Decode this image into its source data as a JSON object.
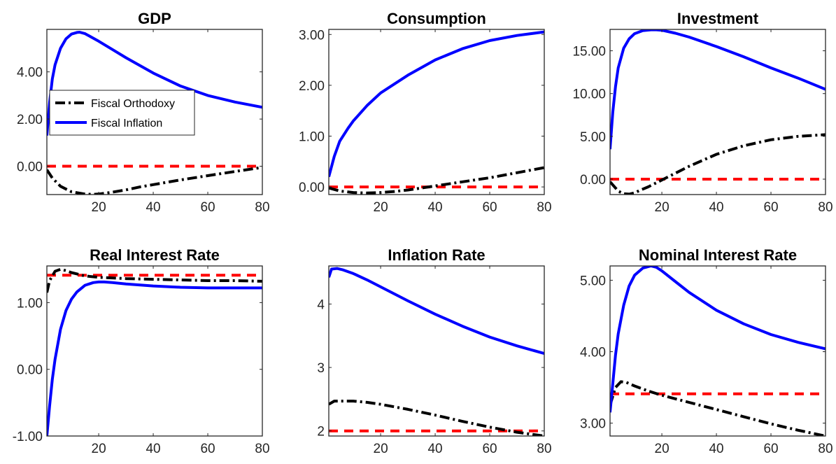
{
  "figure": {
    "legend": {
      "placement": "inside GDP panel, middle-left",
      "entries": [
        {
          "label": "Fiscal Orthodoxy",
          "color": "#000000",
          "style": "dash-dot"
        },
        {
          "label": "Fiscal Inflation",
          "color": "#0000ff",
          "style": "solid"
        }
      ]
    }
  },
  "chart_data": [
    {
      "type": "line",
      "title": "GDP",
      "xlim": [
        1,
        80
      ],
      "ylim": [
        -1.2,
        5.8
      ],
      "xticks": [
        20,
        40,
        60,
        80
      ],
      "yticks": [
        0,
        2,
        4
      ],
      "ytick_labels": [
        "0.00",
        "2.00",
        "4.00"
      ],
      "xtick_labels": [
        "20",
        "40",
        "60",
        "80"
      ],
      "series": [
        {
          "name": "Fiscal Orthodoxy",
          "color": "#000000",
          "dash": "dashdot",
          "x": [
            1,
            3,
            6,
            10,
            15,
            18,
            20,
            25,
            30,
            35,
            40,
            50,
            60,
            70,
            80
          ],
          "y": [
            -0.15,
            -0.5,
            -0.85,
            -1.08,
            -1.18,
            -1.19,
            -1.18,
            -1.1,
            -1.0,
            -0.88,
            -0.78,
            -0.58,
            -0.4,
            -0.22,
            -0.05
          ]
        },
        {
          "name": "Fiscal Inflation",
          "color": "#0000ff",
          "dash": "solid",
          "x": [
            1,
            2,
            3,
            4,
            6,
            8,
            10,
            12,
            13,
            15,
            20,
            25,
            30,
            40,
            50,
            60,
            70,
            80
          ],
          "y": [
            1.3,
            2.7,
            3.7,
            4.3,
            5.0,
            5.4,
            5.6,
            5.67,
            5.68,
            5.62,
            5.3,
            4.95,
            4.6,
            3.95,
            3.4,
            3.0,
            2.72,
            2.5
          ]
        },
        {
          "name": "",
          "color": "#ff0000",
          "dash": "dashed",
          "x": [
            1,
            80
          ],
          "y": [
            0,
            0
          ]
        }
      ]
    },
    {
      "type": "line",
      "title": "Consumption",
      "xlim": [
        1,
        80
      ],
      "ylim": [
        -0.15,
        3.1
      ],
      "xticks": [
        20,
        40,
        60,
        80
      ],
      "yticks": [
        0,
        1,
        2,
        3
      ],
      "ytick_labels": [
        "0.00",
        "1.00",
        "2.00",
        "3.00"
      ],
      "xtick_labels": [
        "20",
        "40",
        "60",
        "80"
      ],
      "series": [
        {
          "name": "Fiscal Orthodoxy",
          "color": "#000000",
          "dash": "dashdot",
          "x": [
            1,
            5,
            10,
            15,
            20,
            25,
            30,
            40,
            50,
            60,
            70,
            80
          ],
          "y": [
            -0.02,
            -0.08,
            -0.11,
            -0.12,
            -0.11,
            -0.09,
            -0.06,
            0.02,
            0.1,
            0.18,
            0.28,
            0.38
          ]
        },
        {
          "name": "Fiscal Inflation",
          "color": "#0000ff",
          "dash": "solid",
          "x": [
            1,
            3,
            5,
            8,
            10,
            15,
            20,
            30,
            40,
            50,
            60,
            70,
            80
          ],
          "y": [
            0.2,
            0.6,
            0.9,
            1.15,
            1.3,
            1.6,
            1.85,
            2.2,
            2.5,
            2.72,
            2.88,
            2.98,
            3.05
          ]
        },
        {
          "name": "",
          "color": "#ff0000",
          "dash": "dashed",
          "x": [
            1,
            80
          ],
          "y": [
            0,
            0
          ]
        }
      ]
    },
    {
      "type": "line",
      "title": "Investment",
      "xlim": [
        1,
        80
      ],
      "ylim": [
        -1.8,
        17.5
      ],
      "xticks": [
        20,
        40,
        60,
        80
      ],
      "yticks": [
        0,
        5,
        10,
        15
      ],
      "ytick_labels": [
        "0.00",
        "5.00",
        "10.00",
        "15.00"
      ],
      "xtick_labels": [
        "20",
        "40",
        "60",
        "80"
      ],
      "series": [
        {
          "name": "Fiscal Orthodoxy",
          "color": "#000000",
          "dash": "dashdot",
          "x": [
            1,
            4,
            6,
            8,
            10,
            12,
            15,
            20,
            25,
            30,
            40,
            50,
            60,
            70,
            80
          ],
          "y": [
            -0.3,
            -1.4,
            -1.7,
            -1.75,
            -1.6,
            -1.3,
            -0.9,
            -0.1,
            0.7,
            1.5,
            2.9,
            3.9,
            4.6,
            5.0,
            5.2
          ]
        },
        {
          "name": "Fiscal Inflation",
          "color": "#0000ff",
          "dash": "solid",
          "x": [
            1,
            2,
            3,
            4,
            6,
            8,
            10,
            13,
            16,
            18,
            20,
            25,
            30,
            40,
            50,
            60,
            70,
            80
          ],
          "y": [
            3.5,
            7.8,
            10.8,
            13.0,
            15.3,
            16.4,
            17.0,
            17.35,
            17.45,
            17.45,
            17.4,
            17.05,
            16.6,
            15.5,
            14.3,
            13.0,
            11.8,
            10.5
          ]
        },
        {
          "name": "",
          "color": "#ff0000",
          "dash": "dashed",
          "x": [
            1,
            80
          ],
          "y": [
            0,
            0
          ]
        }
      ]
    },
    {
      "type": "line",
      "title": "Real Interest Rate",
      "xlim": [
        1,
        80
      ],
      "ylim": [
        -1.0,
        1.55
      ],
      "xticks": [
        20,
        40,
        60,
        80
      ],
      "yticks": [
        -1,
        0,
        1
      ],
      "ytick_labels": [
        "-1.00",
        "0.00",
        "1.00"
      ],
      "xtick_labels": [
        "20",
        "40",
        "60",
        "80"
      ],
      "series": [
        {
          "name": "Fiscal Orthodoxy",
          "color": "#000000",
          "dash": "dashdot",
          "x": [
            1,
            2,
            4,
            6,
            8,
            10,
            15,
            20,
            30,
            40,
            50,
            60,
            70,
            80
          ],
          "y": [
            1.15,
            1.33,
            1.47,
            1.5,
            1.48,
            1.45,
            1.4,
            1.38,
            1.36,
            1.35,
            1.34,
            1.33,
            1.33,
            1.32
          ]
        },
        {
          "name": "Fiscal Inflation",
          "color": "#0000ff",
          "dash": "solid",
          "x": [
            1,
            2,
            3,
            4,
            6,
            8,
            10,
            12,
            15,
            18,
            20,
            22,
            25,
            30,
            40,
            50,
            60,
            70,
            80
          ],
          "y": [
            -1.0,
            -0.55,
            -0.15,
            0.15,
            0.6,
            0.88,
            1.05,
            1.16,
            1.26,
            1.3,
            1.31,
            1.31,
            1.3,
            1.28,
            1.25,
            1.23,
            1.22,
            1.22,
            1.22
          ]
        },
        {
          "name": "",
          "color": "#ff0000",
          "dash": "dashed",
          "x": [
            1,
            80
          ],
          "y": [
            1.41,
            1.41
          ]
        }
      ]
    },
    {
      "type": "line",
      "title": "Inflation Rate",
      "xlim": [
        1,
        80
      ],
      "ylim": [
        1.92,
        4.6
      ],
      "xticks": [
        20,
        40,
        60,
        80
      ],
      "yticks": [
        2,
        3,
        4
      ],
      "ytick_labels": [
        "2",
        "3",
        "4"
      ],
      "xtick_labels": [
        "20",
        "40",
        "60",
        "80"
      ],
      "series": [
        {
          "name": "Fiscal Orthodoxy",
          "color": "#000000",
          "dash": "dashdot",
          "x": [
            1,
            3,
            5,
            10,
            15,
            20,
            30,
            40,
            50,
            60,
            70,
            80
          ],
          "y": [
            2.42,
            2.47,
            2.47,
            2.47,
            2.45,
            2.42,
            2.34,
            2.25,
            2.15,
            2.06,
            1.98,
            1.92
          ]
        },
        {
          "name": "Fiscal Inflation",
          "color": "#0000ff",
          "dash": "solid",
          "x": [
            1,
            2,
            4,
            6,
            10,
            15,
            20,
            30,
            40,
            50,
            60,
            70,
            80
          ],
          "y": [
            4.42,
            4.55,
            4.56,
            4.54,
            4.48,
            4.38,
            4.27,
            4.05,
            3.84,
            3.65,
            3.48,
            3.34,
            3.22
          ]
        },
        {
          "name": "",
          "color": "#ff0000",
          "dash": "dashed",
          "x": [
            1,
            80
          ],
          "y": [
            2.0,
            2.0
          ]
        }
      ]
    },
    {
      "type": "line",
      "title": "Nominal Interest Rate",
      "xlim": [
        1,
        80
      ],
      "ylim": [
        2.82,
        5.2
      ],
      "xticks": [
        20,
        40,
        60,
        80
      ],
      "yticks": [
        3,
        4,
        5
      ],
      "ytick_labels": [
        "3.00",
        "4.00",
        "5.00"
      ],
      "xtick_labels": [
        "20",
        "40",
        "60",
        "80"
      ],
      "series": [
        {
          "name": "Fiscal Orthodoxy",
          "color": "#000000",
          "dash": "dashdot",
          "x": [
            1,
            3,
            5,
            7,
            10,
            15,
            20,
            30,
            40,
            50,
            60,
            70,
            80
          ],
          "y": [
            3.25,
            3.5,
            3.58,
            3.57,
            3.52,
            3.45,
            3.39,
            3.29,
            3.19,
            3.09,
            2.99,
            2.9,
            2.82
          ]
        },
        {
          "name": "Fiscal Inflation",
          "color": "#0000ff",
          "dash": "solid",
          "x": [
            1,
            2,
            3,
            4,
            6,
            8,
            10,
            13,
            16,
            18,
            20,
            25,
            30,
            40,
            50,
            60,
            70,
            80
          ],
          "y": [
            3.15,
            3.55,
            3.95,
            4.25,
            4.65,
            4.92,
            5.07,
            5.17,
            5.2,
            5.18,
            5.13,
            4.98,
            4.83,
            4.58,
            4.39,
            4.24,
            4.13,
            4.04
          ]
        },
        {
          "name": "",
          "color": "#ff0000",
          "dash": "dashed",
          "x": [
            1,
            80
          ],
          "y": [
            3.41,
            3.41
          ]
        }
      ]
    }
  ]
}
